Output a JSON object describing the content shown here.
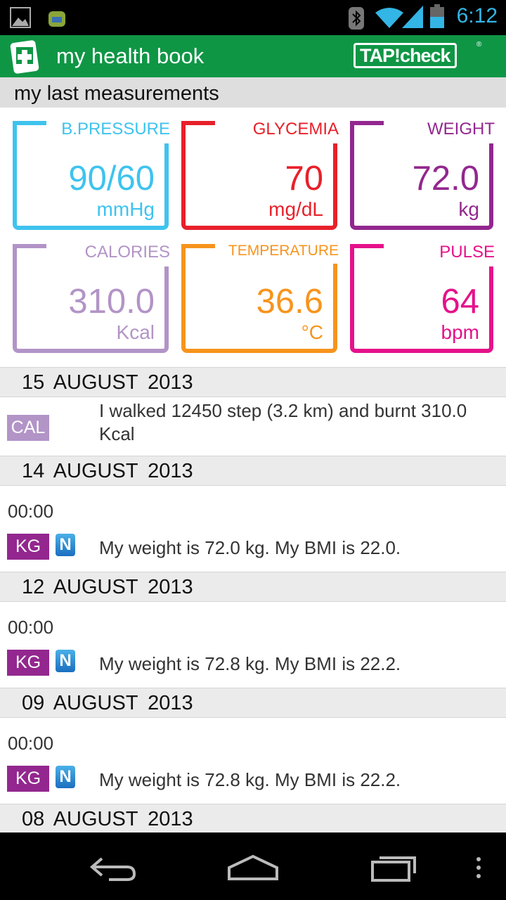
{
  "status_bar": {
    "time": "6:12",
    "icons": [
      "picture-icon",
      "android-icon",
      "bluetooth-icon",
      "wifi-icon",
      "signal-icon",
      "battery-icon"
    ]
  },
  "app_bar": {
    "title": "my health book",
    "logo": "TAP!check",
    "logo_reg": "®"
  },
  "section_title": "my last measurements",
  "measurements": [
    {
      "label": "B.PRESSURE",
      "value": "90/60",
      "unit": "mmHg",
      "color": "#3ec3ee"
    },
    {
      "label": "GLYCEMIA",
      "value": "70",
      "unit": "mg/dL",
      "color": "#e8202a"
    },
    {
      "label": "WEIGHT",
      "value": "72.0",
      "unit": "kg",
      "color": "#93278f"
    },
    {
      "label": "CALORIES",
      "value": "310.0",
      "unit": "Kcal",
      "color": "#b294c7"
    },
    {
      "label": "TEMPERATURE",
      "value": "36.6",
      "unit": "°C",
      "color": "#f7941d"
    },
    {
      "label": "PULSE",
      "value": "64",
      "unit": "bpm",
      "color": "#e5128a"
    }
  ],
  "days": [
    {
      "date": "15  AUGUST  2013",
      "entries": [
        {
          "badge": "CAL",
          "text": "I walked 12450 step (3.2 km) and burnt 310.0 Kcal"
        }
      ]
    },
    {
      "date": "14  AUGUST  2013",
      "entries": [
        {
          "time": "00:00",
          "badge": "KG",
          "text": "My weight is 72.0 kg. My BMI is 22.0."
        }
      ]
    },
    {
      "date": "12  AUGUST  2013",
      "entries": [
        {
          "time": "00:00",
          "badge": "KG",
          "text": "My weight is 72.8 kg. My BMI is 22.2."
        }
      ]
    },
    {
      "date": "09  AUGUST  2013",
      "entries": [
        {
          "time": "00:00",
          "badge": "KG",
          "text": "My weight is 72.8 kg. My BMI is 22.2."
        }
      ]
    },
    {
      "date": "08  AUGUST  2013"
    }
  ],
  "nav": {
    "icons": [
      "back-icon",
      "home-icon",
      "recent-apps-icon",
      "menu-icon"
    ]
  }
}
